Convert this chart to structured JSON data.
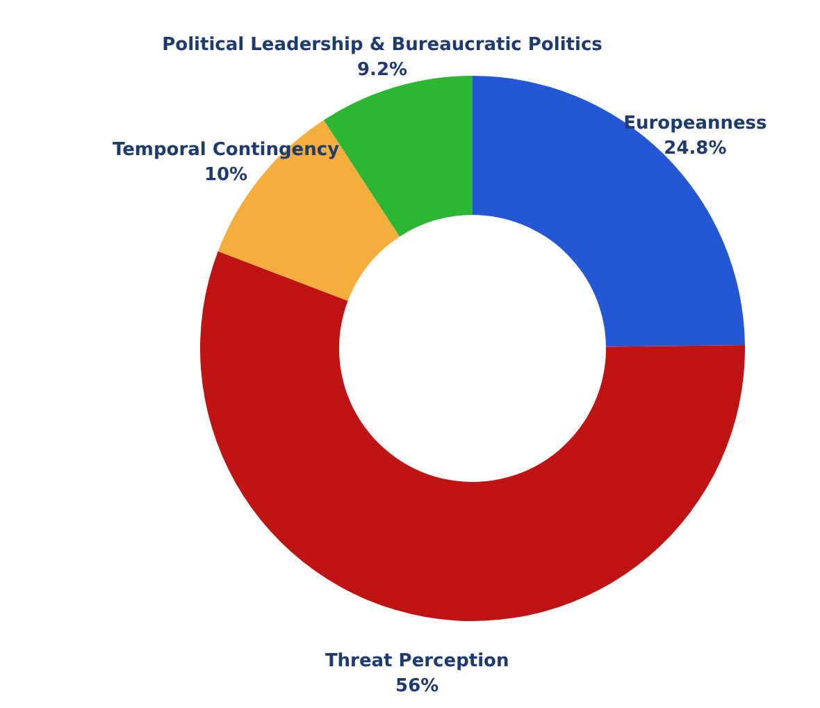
{
  "chart_data": {
    "type": "donut",
    "categories": [
      "Europeanness",
      "Threat Perception",
      "Temporal Contingency",
      "Political Leadership & Bureaucratic Politics"
    ],
    "values": [
      24.8,
      56,
      10,
      9.2
    ],
    "value_labels": [
      "24.8%",
      "56%",
      "10%",
      "9.2%"
    ],
    "colors": [
      "#2457d6",
      "#c01414",
      "#f5ad3c",
      "#2db534"
    ]
  }
}
